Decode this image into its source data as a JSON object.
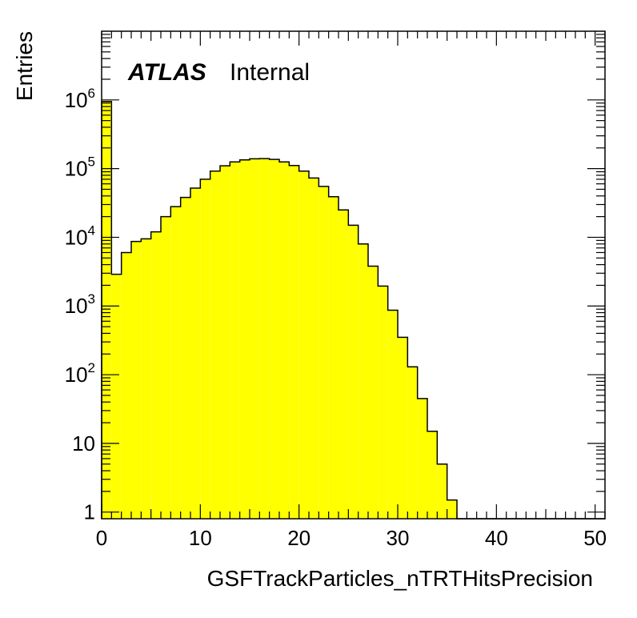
{
  "chart_data": {
    "type": "bar",
    "title": "",
    "xlabel": "GSFTrackParticles_nTRTHitsPrecision",
    "ylabel": "Entries",
    "xlim": [
      0,
      51
    ],
    "ylim": [
      0.8,
      10000000
    ],
    "log_y": true,
    "bin_width": 1,
    "x_ticks": [
      0,
      10,
      20,
      30,
      40,
      50
    ],
    "x_tick_labels": [
      "0",
      "10",
      "20",
      "30",
      "40",
      "50"
    ],
    "y_ticks": [
      1,
      10,
      100,
      1000,
      10000,
      100000,
      1000000
    ],
    "y_tick_labels": [
      {
        "base": "1",
        "exp": ""
      },
      {
        "base": "10",
        "exp": ""
      },
      {
        "base": "10",
        "exp": "2"
      },
      {
        "base": "10",
        "exp": "3"
      },
      {
        "base": "10",
        "exp": "4"
      },
      {
        "base": "10",
        "exp": "5"
      },
      {
        "base": "10",
        "exp": "6"
      }
    ],
    "bin_edges_start": 0,
    "values": [
      950000,
      2900,
      6000,
      8700,
      9500,
      12000,
      20000,
      28000,
      38000,
      52000,
      70000,
      92000,
      110000,
      125000,
      134000,
      139000,
      140000,
      136000,
      125000,
      111000,
      92000,
      73000,
      55000,
      39000,
      25000,
      15000,
      8000,
      3800,
      1950,
      870,
      350,
      130,
      45,
      15,
      5,
      1.5,
      0,
      0,
      0,
      0,
      0,
      0,
      0,
      0,
      0,
      0,
      0,
      0,
      0,
      0,
      0
    ],
    "fill_color": "#ffff00",
    "line_color": "#000000",
    "grid": false,
    "label_main": "ATLAS",
    "label_sub": "Internal"
  }
}
